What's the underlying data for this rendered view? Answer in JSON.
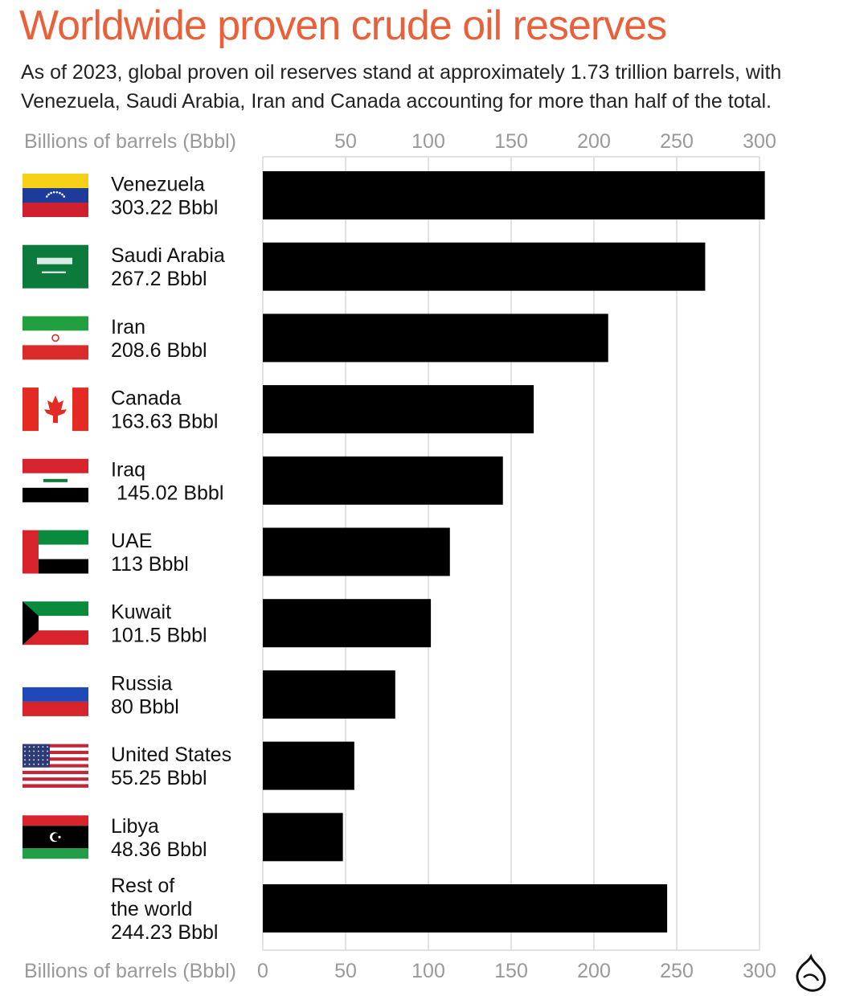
{
  "title": "Worldwide proven crude oil reserves",
  "subtitle": "As of 2023, global proven oil reserves stand at approximately 1.73 trillion barrels, with Venezuela, Saudi Arabia, Iran and Canada accounting for more than half of the total.",
  "colors": {
    "title": "#e8613a",
    "bar": "#000000",
    "grid": "#d9d9d9",
    "axis_text": "#999999"
  },
  "logo_icon": "al-jazeera-logo-icon",
  "chart_data": {
    "type": "bar",
    "orientation": "horizontal",
    "title": "Worldwide proven crude oil reserves",
    "xlabel": "Billions of barrels (Bbbl)",
    "xlim": [
      0,
      305
    ],
    "top_ticks": [
      "50",
      "100",
      "150",
      "200",
      "250",
      "300"
    ],
    "bottom_ticks": [
      "0",
      "50",
      "100",
      "150",
      "200",
      "250",
      "300"
    ],
    "tick_values": [
      0,
      50,
      100,
      150,
      200,
      250,
      300
    ],
    "grid": true,
    "categories": [
      {
        "name": "Venezuela",
        "label": [
          "Venezuela",
          "303.22 Bbbl"
        ],
        "value": 303.22,
        "flag": "venezuela-flag-icon"
      },
      {
        "name": "Saudi Arabia",
        "label": [
          "Saudi Arabia",
          "267.2 Bbbl"
        ],
        "value": 267.2,
        "flag": "saudi-arabia-flag-icon"
      },
      {
        "name": "Iran",
        "label": [
          "Iran",
          "208.6 Bbbl"
        ],
        "value": 208.6,
        "flag": "iran-flag-icon"
      },
      {
        "name": "Canada",
        "label": [
          "Canada",
          "163.63 Bbbl"
        ],
        "value": 163.63,
        "flag": "canada-flag-icon"
      },
      {
        "name": "Iraq",
        "label": [
          "Iraq",
          " 145.02 Bbbl"
        ],
        "value": 145.02,
        "flag": "iraq-flag-icon"
      },
      {
        "name": "UAE",
        "label": [
          "UAE",
          "113 Bbbl"
        ],
        "value": 113,
        "flag": "uae-flag-icon"
      },
      {
        "name": "Kuwait",
        "label": [
          "Kuwait",
          "101.5 Bbbl"
        ],
        "value": 101.5,
        "flag": "kuwait-flag-icon"
      },
      {
        "name": "Russia",
        "label": [
          "Russia",
          "80 Bbbl"
        ],
        "value": 80,
        "flag": "russia-flag-icon"
      },
      {
        "name": "United States",
        "label": [
          "United States",
          "55.25 Bbbl"
        ],
        "value": 55.25,
        "flag": "usa-flag-icon"
      },
      {
        "name": "Libya",
        "label": [
          "Libya",
          "48.36 Bbbl"
        ],
        "value": 48.36,
        "flag": "libya-flag-icon"
      },
      {
        "name": "Rest of the world",
        "label": [
          "Rest of",
          "the world",
          "244.23 Bbbl"
        ],
        "value": 244.23,
        "flag": ""
      }
    ]
  }
}
